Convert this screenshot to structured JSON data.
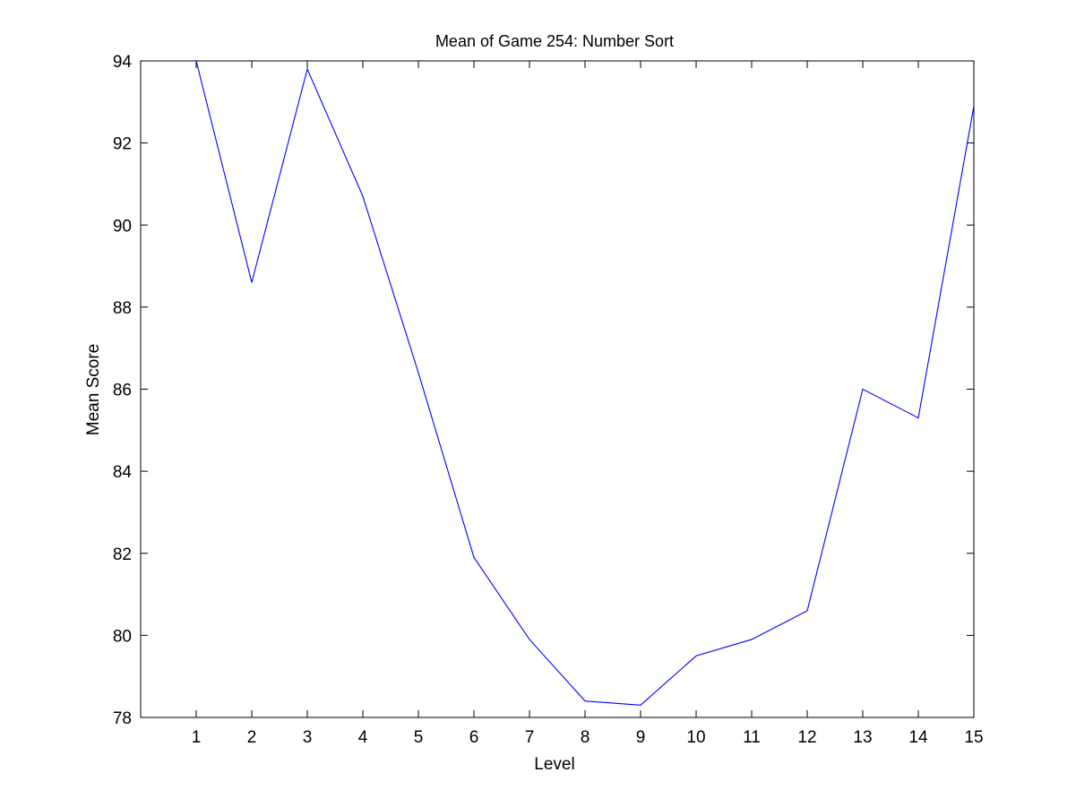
{
  "chart_data": {
    "type": "line",
    "title": "Mean of Game 254: Number Sort",
    "xlabel": "Level",
    "ylabel": "Mean Score",
    "x": [
      1,
      2,
      3,
      4,
      5,
      6,
      7,
      8,
      9,
      10,
      11,
      12,
      13,
      14,
      15
    ],
    "series": [
      {
        "values": [
          94.0,
          88.6,
          93.8,
          90.7,
          86.4,
          81.9,
          79.9,
          78.4,
          78.3,
          79.5,
          79.9,
          80.6,
          86.0,
          85.3,
          92.9
        ],
        "color": "#0000ff"
      }
    ],
    "xticks": [
      "1",
      "2",
      "3",
      "4",
      "5",
      "6",
      "7",
      "8",
      "9",
      "10",
      "11",
      "12",
      "13",
      "14",
      "15"
    ],
    "yticks": [
      "78",
      "80",
      "82",
      "84",
      "86",
      "88",
      "90",
      "92",
      "94"
    ],
    "xlim": [
      0,
      15
    ],
    "ylim": [
      78,
      94
    ],
    "grid": false,
    "legend": "none"
  }
}
